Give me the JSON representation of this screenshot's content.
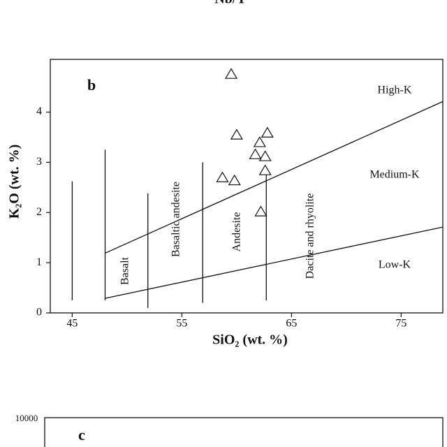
{
  "chart_data": {
    "type": "scatter",
    "top_title": "Nb/Y",
    "panel_label": "b",
    "xlabel": "SiO₂ (wt. %)",
    "ylabel": "K₂O (wt. %)",
    "xlim": [
      43,
      78.8
    ],
    "ylim": [
      0,
      5.05
    ],
    "xticks": [
      45,
      55,
      65,
      75
    ],
    "yticks": [
      0,
      1,
      2,
      3,
      4
    ],
    "x": [
      59.5,
      60.0,
      62.8,
      62.1,
      61.7,
      62.6,
      62.6,
      58.7,
      59.8,
      62.2
    ],
    "values": [
      4.75,
      3.54,
      3.58,
      3.39,
      3.15,
      3.11,
      2.83,
      2.69,
      2.63,
      2.01
    ],
    "boundaries": [
      {
        "x": [
          48,
          78.8
        ],
        "values": [
          1.19,
          4.21
        ]
      },
      {
        "x": [
          48,
          78.8
        ],
        "values": [
          0.29,
          1.71
        ]
      },
      {
        "x": [
          45,
          45
        ],
        "values": [
          0.25,
          2.62
        ]
      },
      {
        "x": [
          48,
          48
        ],
        "values": [
          0.25,
          3.25
        ]
      },
      {
        "x": [
          51.9,
          51.9
        ],
        "values": [
          0.1,
          2.38
        ]
      },
      {
        "x": [
          56.9,
          56.9
        ],
        "values": [
          0.2,
          3.0
        ]
      },
      {
        "x": [
          62.7,
          62.7
        ],
        "values": [
          0.25,
          2.75
        ]
      }
    ],
    "zone_labels": [
      "High-K",
      "Medium-K",
      "Low-K"
    ],
    "rock_labels": [
      "Basalt",
      "Basaltic andesite",
      "Andesite",
      "Dacite and rhyolite"
    ],
    "next_panel": {
      "label": "c",
      "ytick": "10000"
    }
  }
}
